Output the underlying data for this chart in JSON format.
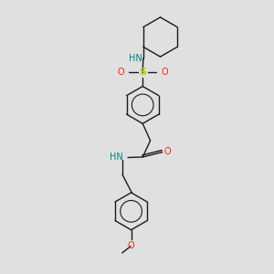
{
  "bg_color": "#e0e0e0",
  "bond_color": "#1a1a1a",
  "N_color": "#2020ff",
  "O_color": "#ff2020",
  "S_color": "#c8c800",
  "NH_color": "#008080",
  "font_size": 6.5,
  "line_width": 1.0,
  "figsize": [
    3.0,
    3.0
  ],
  "dpi": 100,
  "xlim": [
    0,
    10
  ],
  "ylim": [
    0,
    10
  ]
}
